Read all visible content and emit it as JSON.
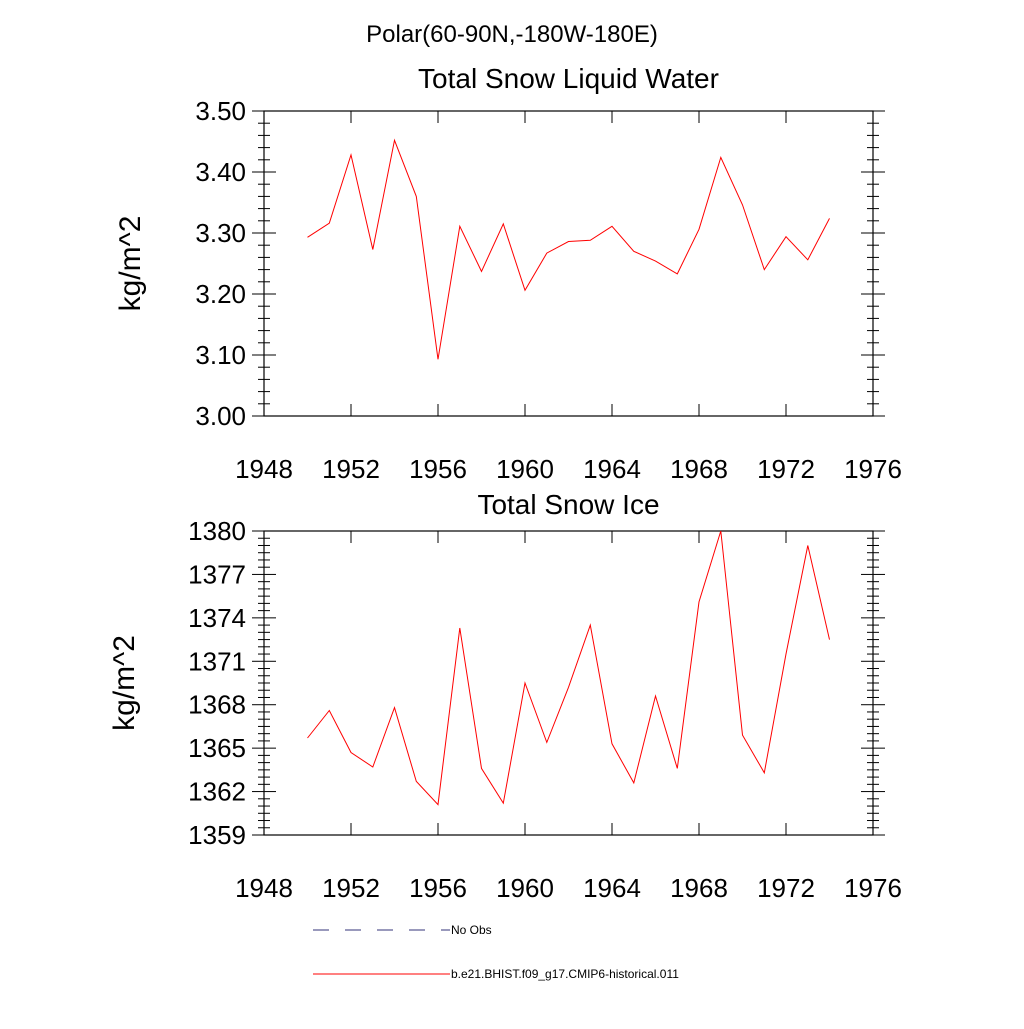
{
  "page_title": "Polar(60-90N,-180W-180E)",
  "colors": {
    "series": "#ff0000",
    "legend_dash": "#33337a",
    "axis": "#000000"
  },
  "legend": {
    "items": [
      {
        "label": "No Obs",
        "style": "dashed"
      },
      {
        "label": "b.e21.BHIST.f09_g17.CMIP6-historical.011",
        "style": "solid"
      }
    ]
  },
  "chart_data": [
    {
      "type": "line",
      "title": "Total Snow Liquid Water",
      "xlabel": "",
      "ylabel": "kg/m^2",
      "xlim": [
        1948,
        1976
      ],
      "ylim": [
        3.0,
        3.5
      ],
      "xticks": [
        "1948",
        "1952",
        "1956",
        "1960",
        "1964",
        "1968",
        "1972",
        "1976"
      ],
      "yticks": [
        "3.00",
        "3.10",
        "3.20",
        "3.30",
        "3.40",
        "3.50"
      ],
      "grid": false,
      "series": [
        {
          "x": [
            1950,
            1951,
            1952,
            1953,
            1954,
            1955,
            1956,
            1957,
            1958,
            1959,
            1960,
            1961,
            1962,
            1963,
            1964,
            1965,
            1966,
            1967,
            1968,
            1969,
            1970,
            1971,
            1972,
            1973,
            1974
          ],
          "values": [
            3.293,
            3.316,
            3.428,
            3.273,
            3.452,
            3.36,
            3.093,
            3.311,
            3.237,
            3.315,
            3.206,
            3.267,
            3.286,
            3.288,
            3.311,
            3.27,
            3.254,
            3.233,
            3.306,
            3.424,
            3.346,
            3.24,
            3.294,
            3.256,
            3.324
          ]
        }
      ]
    },
    {
      "type": "line",
      "title": "Total Snow Ice",
      "xlabel": "",
      "ylabel": "kg/m^2",
      "xlim": [
        1948,
        1976
      ],
      "ylim": [
        1359,
        1380
      ],
      "xticks": [
        "1948",
        "1952",
        "1956",
        "1960",
        "1964",
        "1968",
        "1972",
        "1976"
      ],
      "yticks": [
        "1359",
        "1362",
        "1365",
        "1368",
        "1371",
        "1374",
        "1377",
        "1380"
      ],
      "grid": false,
      "series": [
        {
          "x": [
            1950,
            1951,
            1952,
            1953,
            1954,
            1955,
            1956,
            1957,
            1958,
            1959,
            1960,
            1961,
            1962,
            1963,
            1964,
            1965,
            1966,
            1967,
            1968,
            1969,
            1970,
            1971,
            1972,
            1973,
            1974
          ],
          "values": [
            1365.7,
            1367.6,
            1364.7,
            1363.7,
            1367.8,
            1362.7,
            1361.1,
            1373.3,
            1363.6,
            1361.2,
            1369.5,
            1365.4,
            1369.2,
            1373.5,
            1365.3,
            1362.6,
            1368.6,
            1363.6,
            1375.1,
            1380.0,
            1365.9,
            1363.3,
            1371.5,
            1379.0,
            1372.5
          ]
        }
      ]
    }
  ]
}
